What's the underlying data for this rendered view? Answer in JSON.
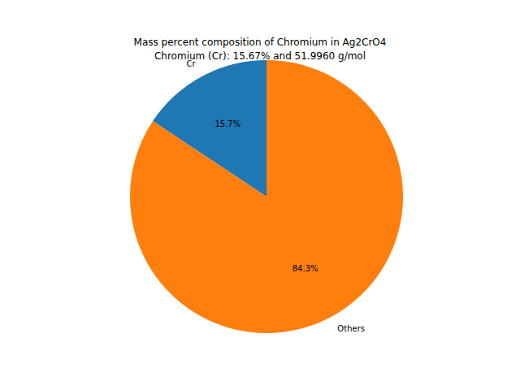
{
  "chart_data": {
    "type": "pie",
    "title": "Mass percent composition of Chromium in Ag2CrO4",
    "subtitle": "Chromium (Cr): 15.67% and 51.9960 g/mol",
    "categories": [
      "Cr",
      "Others"
    ],
    "values": [
      15.67,
      84.33
    ],
    "value_labels": [
      "15.7%",
      "84.3%"
    ],
    "colors": [
      "#1f77b4",
      "#ff7f0e"
    ],
    "data_labels": true
  }
}
